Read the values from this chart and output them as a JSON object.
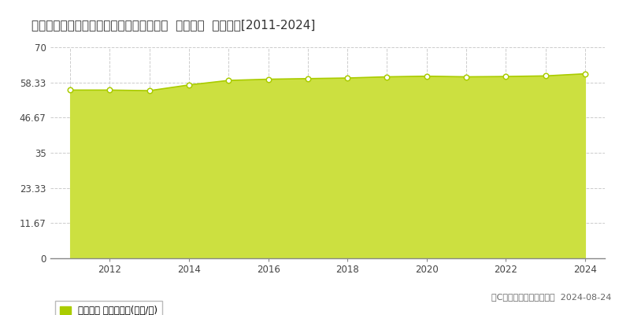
{
  "title": "東京都立川市富士見町６丁目３３３番２外  地価公示  地価推移[2011-2024]",
  "years": [
    2011,
    2012,
    2013,
    2014,
    2015,
    2016,
    2017,
    2018,
    2019,
    2020,
    2021,
    2022,
    2023,
    2024
  ],
  "values": [
    55.8,
    55.8,
    55.6,
    57.5,
    59.0,
    59.4,
    59.6,
    59.8,
    60.2,
    60.4,
    60.2,
    60.3,
    60.5,
    61.2
  ],
  "ylim": [
    0,
    70
  ],
  "yticks": [
    0,
    11.67,
    23.33,
    35,
    46.67,
    58.33,
    70
  ],
  "ytick_labels": [
    "0",
    "11.67",
    "23.33",
    "35",
    "46.67",
    "58.33",
    "70"
  ],
  "xticks": [
    2012,
    2014,
    2016,
    2018,
    2020,
    2022,
    2024
  ],
  "vgrid_years": [
    2011,
    2012,
    2013,
    2014,
    2015,
    2016,
    2017,
    2018,
    2019,
    2020,
    2021,
    2022,
    2023,
    2024
  ],
  "line_color": "#aacc00",
  "fill_color": "#cce040",
  "fill_alpha": 1.0,
  "marker_color": "#ffffff",
  "marker_edge_color": "#aacc00",
  "bg_color": "#ffffff",
  "plot_bg_color": "#ffffff",
  "hgrid_color": "#cccccc",
  "vgrid_color": "#cccccc",
  "legend_label": "地価公示 平均坪単価(万円/坪)",
  "copyright_text": "（C）土地価格ドットコム  2024-08-24",
  "title_fontsize": 11,
  "tick_fontsize": 8.5,
  "legend_fontsize": 8.5,
  "copyright_fontsize": 8
}
